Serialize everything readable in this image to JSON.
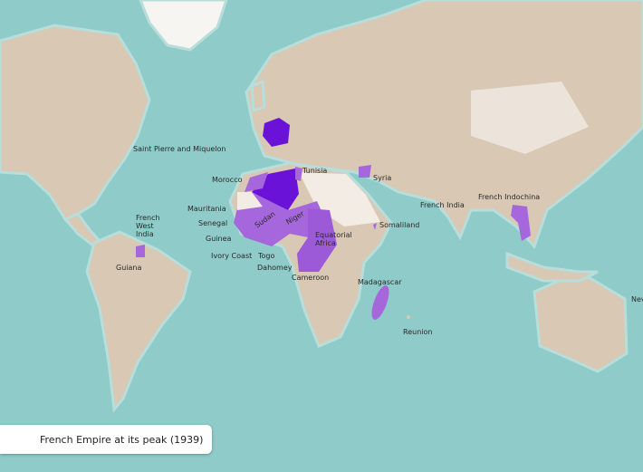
{
  "caption": "French Empire at its peak (1939)",
  "colors": {
    "ocean": "#8fcbc8",
    "land": "#d8c8b4",
    "desert": "#f2ece4",
    "french_core": "#6a12d8",
    "french_colony": "#a767dc",
    "french_light": "#c39ae6"
  },
  "labels": {
    "saint_pierre": "Saint Pierre and Miquelon",
    "morocco": "Morocco",
    "tunisia": "Tunisia",
    "syria": "Syria",
    "mauritania": "Mauritania",
    "senegal": "Senegal",
    "guinea": "Guinea",
    "ivory_coast": "Ivory Coast",
    "togo": "Togo",
    "dahomey": "Dahomey",
    "sudan": "Sudan",
    "niger": "Niger",
    "equatorial_africa": "Equatorial Africa",
    "cameroon": "Cameroon",
    "french_west_india": "French West India",
    "guiana": "Guiana",
    "somaliland": "Somaliland",
    "french_india": "French India",
    "french_indochina": "French Indochina",
    "madagascar": "Madagascar",
    "reunion": "Reunion",
    "new_caledonia_partial": "Nev"
  }
}
